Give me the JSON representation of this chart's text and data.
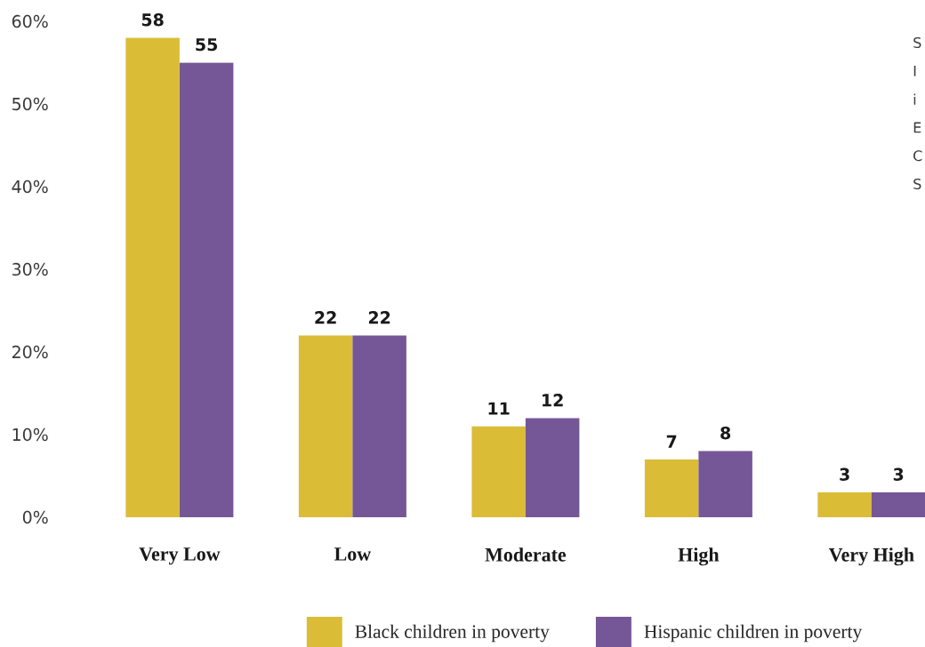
{
  "chart_data": {
    "type": "bar",
    "categories": [
      "Very Low",
      "Low",
      "Moderate",
      "High",
      "Very High"
    ],
    "series": [
      {
        "name": "Black children in poverty",
        "color": "#dbbc37",
        "values": [
          58,
          22,
          11,
          7,
          3
        ]
      },
      {
        "name": "Hispanic children in poverty",
        "color": "#755797",
        "values": [
          55,
          22,
          12,
          8,
          3
        ]
      }
    ],
    "ylim": [
      0,
      60
    ],
    "yticks": [
      {
        "value": 0,
        "label": "0%"
      },
      {
        "value": 10,
        "label": "10%"
      },
      {
        "value": 20,
        "label": "20%"
      },
      {
        "value": 30,
        "label": "30%"
      },
      {
        "value": 40,
        "label": "40%"
      },
      {
        "value": 50,
        "label": "50%"
      },
      {
        "value": 60,
        "label": "60%"
      }
    ],
    "data_labels": true,
    "legend": "bottom",
    "annotations": [
      "S",
      "I",
      "i",
      "E",
      "C",
      "S"
    ]
  }
}
